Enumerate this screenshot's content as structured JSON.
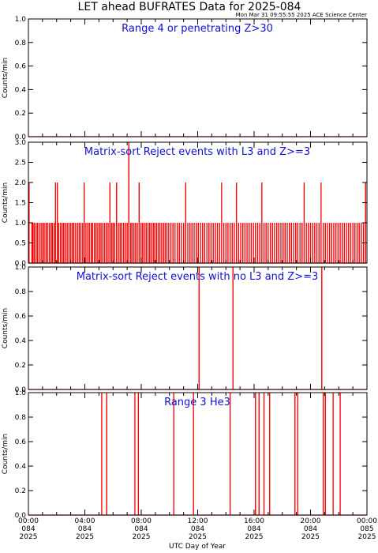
{
  "title": "LET ahead BUFRATES Data for 2025-084",
  "timestamp": "Mon Mar 31 09:55:55 2025 ACE Science Center",
  "x_axis_label": "UTC Day of Year",
  "colors": {
    "data": "#ff0000",
    "panel_title": "#1010d0",
    "axes": "#000000"
  },
  "chart_data": [
    {
      "type": "line",
      "title": "Range 4 or   penetrating Z>30",
      "ylabel": "Counts/min",
      "xlim": [
        0,
        24
      ],
      "ylim": [
        0,
        1.0
      ],
      "yticks": [
        "0.0",
        "0.2",
        "0.4",
        "0.6",
        "0.8",
        "1.0"
      ],
      "baseline": 0,
      "spikes": []
    },
    {
      "type": "line",
      "title": "Matrix-sort Reject events with L3 and Z>=3",
      "ylabel": "Counts/min",
      "xlim": [
        0,
        24
      ],
      "ylim": [
        0,
        3.0
      ],
      "yticks": [
        "0.0",
        "0.5",
        "1.0",
        "1.5",
        "2.0",
        "2.5",
        "3.0"
      ],
      "baseline": 0,
      "spikes": [
        [
          0.05,
          2
        ],
        [
          0.25,
          1
        ],
        [
          0.32,
          1
        ],
        [
          0.42,
          1
        ],
        [
          0.55,
          1
        ],
        [
          0.65,
          1
        ],
        [
          0.78,
          1
        ],
        [
          0.9,
          1
        ],
        [
          1.02,
          1
        ],
        [
          1.12,
          1
        ],
        [
          1.25,
          1
        ],
        [
          1.35,
          1
        ],
        [
          1.48,
          1
        ],
        [
          1.6,
          1
        ],
        [
          1.7,
          1
        ],
        [
          1.82,
          1
        ],
        [
          1.92,
          2
        ],
        [
          2.05,
          2
        ],
        [
          2.15,
          1
        ],
        [
          2.28,
          1
        ],
        [
          2.4,
          1
        ],
        [
          2.5,
          1
        ],
        [
          2.62,
          1
        ],
        [
          2.75,
          1
        ],
        [
          2.88,
          1
        ],
        [
          3.0,
          1
        ],
        [
          3.12,
          1
        ],
        [
          3.22,
          1
        ],
        [
          3.35,
          1
        ],
        [
          3.48,
          1
        ],
        [
          3.6,
          1
        ],
        [
          3.72,
          1
        ],
        [
          3.85,
          1
        ],
        [
          3.95,
          2
        ],
        [
          4.08,
          1
        ],
        [
          4.2,
          1
        ],
        [
          4.32,
          1
        ],
        [
          4.45,
          1
        ],
        [
          4.55,
          1
        ],
        [
          4.68,
          1
        ],
        [
          4.8,
          1
        ],
        [
          4.92,
          1
        ],
        [
          5.05,
          1
        ],
        [
          5.15,
          1
        ],
        [
          5.28,
          1
        ],
        [
          5.4,
          1
        ],
        [
          5.52,
          1
        ],
        [
          5.65,
          1
        ],
        [
          5.78,
          2
        ],
        [
          5.9,
          1
        ],
        [
          6.0,
          1
        ],
        [
          6.12,
          1
        ],
        [
          6.25,
          2
        ],
        [
          6.38,
          1
        ],
        [
          6.5,
          1
        ],
        [
          6.62,
          1
        ],
        [
          6.75,
          1
        ],
        [
          6.88,
          1
        ],
        [
          7.0,
          1
        ],
        [
          7.12,
          3
        ],
        [
          7.25,
          1
        ],
        [
          7.35,
          1
        ],
        [
          7.48,
          1
        ],
        [
          7.6,
          1
        ],
        [
          7.72,
          1
        ],
        [
          7.85,
          2
        ],
        [
          7.98,
          1
        ],
        [
          8.1,
          1
        ],
        [
          8.22,
          1
        ],
        [
          8.35,
          1
        ],
        [
          8.48,
          1
        ],
        [
          8.6,
          1
        ],
        [
          8.72,
          1
        ],
        [
          8.85,
          1
        ],
        [
          8.95,
          1
        ],
        [
          9.08,
          1
        ],
        [
          9.2,
          1
        ],
        [
          9.32,
          1
        ],
        [
          9.45,
          1
        ],
        [
          9.58,
          1
        ],
        [
          9.7,
          1
        ],
        [
          9.82,
          1
        ],
        [
          9.95,
          1
        ],
        [
          10.1,
          1
        ],
        [
          10.25,
          1
        ],
        [
          10.4,
          1
        ],
        [
          10.55,
          1
        ],
        [
          10.7,
          1
        ],
        [
          10.85,
          1
        ],
        [
          11.0,
          1
        ],
        [
          11.15,
          2
        ],
        [
          11.3,
          1
        ],
        [
          11.45,
          1
        ],
        [
          11.6,
          1
        ],
        [
          11.75,
          1
        ],
        [
          11.9,
          1
        ],
        [
          12.05,
          1
        ],
        [
          12.2,
          1
        ],
        [
          12.35,
          1
        ],
        [
          12.5,
          1
        ],
        [
          12.65,
          1
        ],
        [
          12.8,
          1
        ],
        [
          12.95,
          1
        ],
        [
          13.1,
          1
        ],
        [
          13.25,
          1
        ],
        [
          13.4,
          1
        ],
        [
          13.55,
          1
        ],
        [
          13.7,
          2
        ],
        [
          13.85,
          1
        ],
        [
          14.0,
          1
        ],
        [
          14.15,
          1
        ],
        [
          14.3,
          1
        ],
        [
          14.45,
          1
        ],
        [
          14.6,
          1
        ],
        [
          14.75,
          2
        ],
        [
          14.9,
          1
        ],
        [
          15.05,
          1
        ],
        [
          15.2,
          1
        ],
        [
          15.35,
          1
        ],
        [
          15.5,
          1
        ],
        [
          15.65,
          1
        ],
        [
          15.8,
          1
        ],
        [
          15.95,
          1
        ],
        [
          16.1,
          1
        ],
        [
          16.25,
          1
        ],
        [
          16.4,
          1
        ],
        [
          16.55,
          2
        ],
        [
          16.7,
          1
        ],
        [
          16.85,
          1
        ],
        [
          17.0,
          1
        ],
        [
          17.15,
          1
        ],
        [
          17.3,
          1
        ],
        [
          17.45,
          1
        ],
        [
          17.6,
          1
        ],
        [
          17.75,
          1
        ],
        [
          17.9,
          1
        ],
        [
          18.05,
          1
        ],
        [
          18.2,
          1
        ],
        [
          18.35,
          1
        ],
        [
          18.5,
          1
        ],
        [
          18.65,
          1
        ],
        [
          18.8,
          1
        ],
        [
          18.95,
          1
        ],
        [
          19.1,
          1
        ],
        [
          19.25,
          1
        ],
        [
          19.4,
          1
        ],
        [
          19.55,
          2
        ],
        [
          19.7,
          1
        ],
        [
          19.85,
          1
        ],
        [
          20.0,
          1
        ],
        [
          20.15,
          1
        ],
        [
          20.3,
          1
        ],
        [
          20.45,
          1
        ],
        [
          20.6,
          1
        ],
        [
          20.75,
          2
        ],
        [
          20.9,
          1
        ],
        [
          21.05,
          1
        ],
        [
          21.2,
          1
        ],
        [
          21.35,
          1
        ],
        [
          21.5,
          1
        ],
        [
          21.65,
          1
        ],
        [
          21.8,
          1
        ],
        [
          21.95,
          1
        ],
        [
          22.1,
          1
        ],
        [
          22.25,
          1
        ],
        [
          22.4,
          1
        ],
        [
          22.55,
          1
        ],
        [
          22.7,
          1
        ],
        [
          22.85,
          1
        ],
        [
          23.0,
          1
        ],
        [
          23.15,
          1
        ],
        [
          23.3,
          1
        ],
        [
          23.45,
          1
        ],
        [
          23.6,
          1
        ],
        [
          23.75,
          1
        ],
        [
          23.9,
          2
        ]
      ]
    },
    {
      "type": "line",
      "title": "Matrix-sort Reject events with no L3 and Z>=3",
      "ylabel": "Counts/min",
      "xlim": [
        0,
        24
      ],
      "ylim": [
        0,
        1.0
      ],
      "yticks": [
        "0.0",
        "0.2",
        "0.4",
        "0.6",
        "0.8",
        "1.0"
      ],
      "baseline": 0,
      "spikes": [
        [
          12.1,
          1
        ],
        [
          14.5,
          1
        ],
        [
          20.8,
          1
        ]
      ]
    },
    {
      "type": "line",
      "title": "Range 3 He3",
      "ylabel": "Counts/min",
      "xlim": [
        0,
        24
      ],
      "ylim": [
        0,
        1.0
      ],
      "yticks": [
        "0.0",
        "0.2",
        "0.4",
        "0.6",
        "0.8",
        "1.0"
      ],
      "baseline": 0,
      "spikes": [
        [
          5.2,
          1
        ],
        [
          5.55,
          1
        ],
        [
          7.55,
          1
        ],
        [
          7.8,
          1
        ],
        [
          10.3,
          1
        ],
        [
          11.7,
          1
        ],
        [
          14.3,
          1
        ],
        [
          16.1,
          1
        ],
        [
          16.35,
          1
        ],
        [
          16.7,
          1
        ],
        [
          17.1,
          1
        ],
        [
          18.9,
          1
        ],
        [
          19.1,
          1
        ],
        [
          20.9,
          1
        ],
        [
          21.05,
          1
        ],
        [
          21.6,
          1
        ],
        [
          22.1,
          1
        ]
      ]
    }
  ],
  "x_ticks": [
    {
      "time": "00:00",
      "doy": "084",
      "year": "2025"
    },
    {
      "time": "04:00",
      "doy": "084",
      "year": "2025"
    },
    {
      "time": "08:00",
      "doy": "084",
      "year": "2025"
    },
    {
      "time": "12:00",
      "doy": "084",
      "year": "2025"
    },
    {
      "time": "16:00",
      "doy": "084",
      "year": "2025"
    },
    {
      "time": "20:00",
      "doy": "084",
      "year": "2025"
    },
    {
      "time": "00:00",
      "doy": "085",
      "year": "2025"
    }
  ]
}
